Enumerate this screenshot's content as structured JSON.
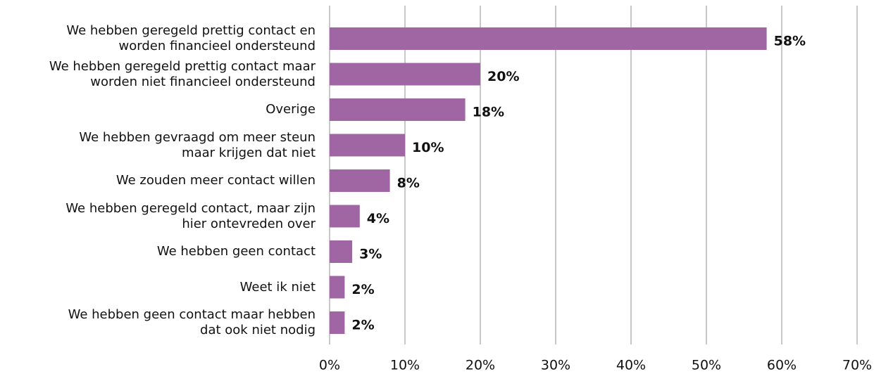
{
  "chart_data": {
    "type": "barh",
    "categories": [
      "We hebben geregeld prettig contact en\nworden financieel ondersteund",
      "We hebben geregeld prettig contact maar\nworden niet financieel ondersteund",
      "Overige",
      "We hebben gevraagd om meer steun\nmaar krijgen dat niet",
      "We zouden meer contact willen",
      "We hebben geregeld contact, maar zijn\nhier ontevreden over",
      "We hebben geen contact",
      "Weet ik niet",
      "We hebben geen contact maar hebben\ndat ook niet nodig"
    ],
    "values": [
      58,
      20,
      18,
      10,
      8,
      4,
      3,
      2,
      2
    ],
    "value_labels": [
      "58%",
      "20%",
      "18%",
      "10%",
      "8%",
      "4%",
      "3%",
      "2%",
      "2%"
    ],
    "color": "#a066a3",
    "xlim": [
      0,
      70
    ],
    "xticks": [
      {
        "value": 0,
        "label": "0%"
      },
      {
        "value": 10,
        "label": "10%"
      },
      {
        "value": 20,
        "label": "20%"
      },
      {
        "value": 30,
        "label": "30%"
      },
      {
        "value": 40,
        "label": "40%"
      },
      {
        "value": 50,
        "label": "50%"
      },
      {
        "value": 60,
        "label": "60%"
      },
      {
        "value": 70,
        "label": "70%"
      }
    ],
    "grid": true
  }
}
